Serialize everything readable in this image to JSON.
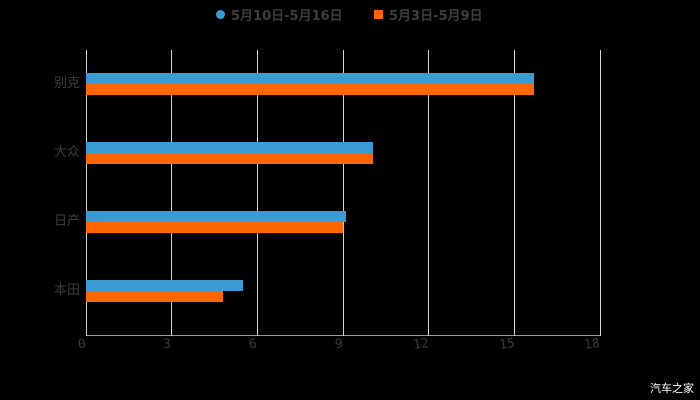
{
  "chart_data": {
    "type": "bar",
    "orientation": "horizontal",
    "title": "",
    "xlabel": "",
    "ylabel": "",
    "categories": [
      "别克",
      "大众",
      "日产",
      "本田"
    ],
    "series": [
      {
        "name": "5月10日-5月16日",
        "color": "#3a9bd5",
        "values": [
          15.7,
          10.05,
          9.1,
          5.5
        ]
      },
      {
        "name": "5月3日-5月9日",
        "color": "#ff6600",
        "values": [
          15.7,
          10.05,
          9.0,
          4.8
        ]
      }
    ],
    "xlim": [
      0,
      18
    ],
    "xticks": [
      0,
      3,
      6,
      9,
      12,
      15,
      18
    ],
    "grid": "vertical",
    "legend_position": "top"
  },
  "legend": [
    {
      "label": "5月10日-5月16日",
      "color": "#3a9bd5",
      "shape": "circle"
    },
    {
      "label": "5月3日-5月9日",
      "color": "#ff6600",
      "shape": "square"
    }
  ],
  "axis": {
    "tick_labels": [
      "0",
      "3",
      "6",
      "9",
      "12",
      "15",
      "18"
    ]
  },
  "categories": [
    "别克",
    "大众",
    "日产",
    "本田"
  ],
  "watermark": "汽车之家"
}
